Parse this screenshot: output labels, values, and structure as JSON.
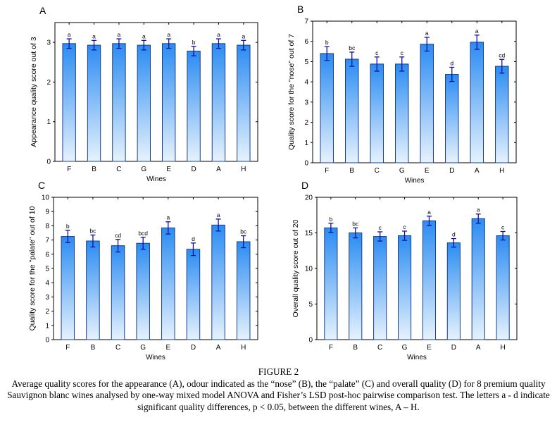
{
  "chart_data": [
    {
      "type": "bar",
      "panel": "A",
      "categories": [
        "F",
        "B",
        "C",
        "G",
        "E",
        "D",
        "A",
        "H"
      ],
      "values": [
        2.97,
        2.93,
        2.97,
        2.93,
        2.97,
        2.78,
        2.97,
        2.93
      ],
      "errors": [
        0.12,
        0.12,
        0.12,
        0.12,
        0.12,
        0.12,
        0.12,
        0.12
      ],
      "letters": [
        "a",
        "a",
        "a",
        "a",
        "a",
        "b",
        "a",
        "a"
      ],
      "xlabel": "Wines",
      "ylabel": "Appearance quality score out of 3",
      "ylim": [
        0,
        3.5
      ],
      "yticks": [
        0,
        1,
        2,
        3
      ],
      "grid": false
    },
    {
      "type": "bar",
      "panel": "B",
      "categories": [
        "F",
        "B",
        "C",
        "G",
        "E",
        "D",
        "A",
        "H"
      ],
      "values": [
        5.4,
        5.12,
        4.88,
        4.88,
        5.86,
        4.37,
        5.96,
        4.77
      ],
      "errors": [
        0.34,
        0.35,
        0.35,
        0.35,
        0.34,
        0.35,
        0.35,
        0.34
      ],
      "letters": [
        "b",
        "bc",
        "c",
        "c",
        "a",
        "d",
        "a",
        "cd"
      ],
      "xlabel": "Wines",
      "ylabel": "Quality score for the \"nose\" out of 7",
      "ylim": [
        0,
        7
      ],
      "yticks": [
        0,
        1,
        2,
        3,
        4,
        5,
        6,
        7
      ],
      "grid": false
    },
    {
      "type": "bar",
      "panel": "C",
      "categories": [
        "F",
        "B",
        "C",
        "G",
        "E",
        "D",
        "A",
        "H"
      ],
      "values": [
        7.25,
        6.93,
        6.6,
        6.77,
        7.85,
        6.35,
        8.05,
        6.88
      ],
      "errors": [
        0.43,
        0.42,
        0.44,
        0.42,
        0.43,
        0.44,
        0.42,
        0.42
      ],
      "letters": [
        "b",
        "bc",
        "cd",
        "bcd",
        "a",
        "d",
        "a",
        "bc"
      ],
      "xlabel": "Wines",
      "ylabel": "Quality score for the \"palate\" out of 10",
      "ylim": [
        0,
        10
      ],
      "yticks": [
        0,
        1,
        2,
        3,
        4,
        5,
        6,
        7,
        8,
        9,
        10
      ],
      "grid": false
    },
    {
      "type": "bar",
      "panel": "D",
      "categories": [
        "F",
        "B",
        "C",
        "G",
        "E",
        "D",
        "A",
        "H"
      ],
      "values": [
        15.7,
        15.0,
        14.5,
        14.6,
        16.7,
        13.6,
        17.0,
        14.6
      ],
      "errors": [
        0.65,
        0.7,
        0.65,
        0.65,
        0.65,
        0.6,
        0.65,
        0.6
      ],
      "letters": [
        "b",
        "bc",
        "c",
        "c",
        "a",
        "d",
        "a",
        "c"
      ],
      "xlabel": "Wines",
      "ylabel": "Overall quality score out of 20",
      "ylim": [
        0,
        20
      ],
      "yticks": [
        0,
        5,
        10,
        15,
        20
      ],
      "grid": false
    }
  ],
  "colors": {
    "bar_top": "#2b8cf2",
    "bar_bottom": "#e6f2fd",
    "bar_edge": "#1a3f8a",
    "error_bar": "#1010a0"
  },
  "caption": {
    "title": "FIGURE 2",
    "text": "Average quality scores for the appearance (A), odour indicated as the “nose” (B), the “palate” (C) and overall quality (D) for 8 premium quality Sauvignon blanc wines analysed by one-way mixed model ANOVA and Fisher’s LSD post-hoc pairwise comparison test. The letters a - d indicate significant quality differences, p < 0.05, between the different wines, A – H."
  }
}
